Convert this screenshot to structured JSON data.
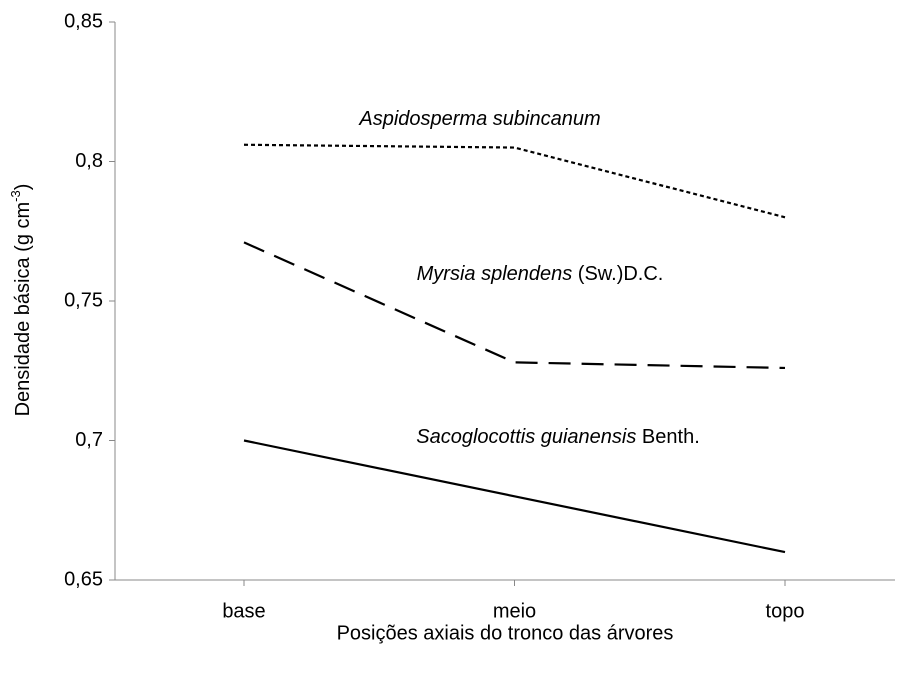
{
  "chart_data": {
    "type": "line",
    "x_label": "Posições axiais do tronco das árvores",
    "y_label": {
      "main": "Densidade  básica  (g cm",
      "sup": "-3",
      "end": ")"
    },
    "categories": [
      "base",
      "meio",
      "topo"
    ],
    "series": [
      {
        "name": "Aspidosperma subincanum",
        "name_suffix": "",
        "color": "#000000",
        "dash": "4,3",
        "values": [
          0.806,
          0.805,
          0.78
        ]
      },
      {
        "name": "Myrsia splendens",
        "name_suffix": " (Sw.)D.C.",
        "color": "#000000",
        "dash": "22,11",
        "values": [
          0.771,
          0.728,
          0.726
        ]
      },
      {
        "name": "Sacoglocottis guianensis",
        "name_suffix": " Benth.",
        "color": "#000000",
        "dash": "none",
        "values": [
          0.7,
          0.68,
          0.66
        ]
      }
    ],
    "ylim": [
      0.65,
      0.85
    ],
    "yticks": [
      {
        "value": 0.65,
        "label": "0,65"
      },
      {
        "value": 0.7,
        "label": "0,7"
      },
      {
        "value": 0.75,
        "label": "0,75"
      },
      {
        "value": 0.8,
        "label": "0,8"
      },
      {
        "value": 0.85,
        "label": "0,85"
      }
    ],
    "grid": false
  }
}
